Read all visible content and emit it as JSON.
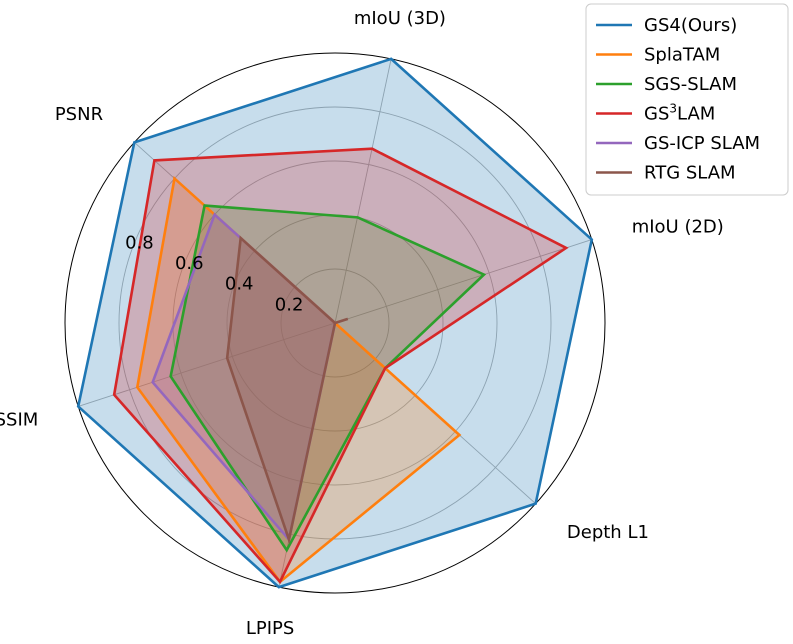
{
  "chart_data": {
    "type": "radar",
    "title": "",
    "rlim": [
      0,
      1.0
    ],
    "grid": true,
    "radial_ticks": [
      0.2,
      0.4,
      0.6,
      0.8
    ],
    "radial_tick_labels": [
      "0.2",
      "0.4",
      "0.6",
      "0.8"
    ],
    "axes": [
      {
        "label": "mIoU (3D)",
        "label_html_sup": ""
      },
      {
        "label": "mIoU (2D)",
        "label_html_sup": ""
      },
      {
        "label": "Depth L1",
        "label_html_sup": ""
      },
      {
        "label": "LPIPS",
        "label_html_sup": ""
      },
      {
        "label": "SSIM",
        "label_html_sup": ""
      },
      {
        "label": "PSNR",
        "label_html_sup": ""
      }
    ],
    "legend_position": "outside top-right",
    "series": [
      {
        "name": "GS4(Ours)",
        "name_base": "GS4(Ours)",
        "name_sup": "",
        "name_tail": "",
        "color": "#1f77b4",
        "fill": true,
        "values": [
          1.0,
          1.0,
          1.0,
          1.0,
          1.0,
          1.0
        ]
      },
      {
        "name": "SplaTAM",
        "name_base": "SplaTAM",
        "name_sup": "",
        "name_tail": "",
        "color": "#ff7f0e",
        "fill": true,
        "values": [
          0.0,
          0.0,
          0.62,
          0.98,
          0.77,
          0.8
        ]
      },
      {
        "name": "SGS-SLAM",
        "name_base": "SGS-SLAM",
        "name_sup": "",
        "name_tail": "",
        "color": "#2ca02c",
        "fill": true,
        "values": [
          0.4,
          0.58,
          0.25,
          0.86,
          0.64,
          0.65
        ]
      },
      {
        "name": "GS3LAM",
        "name_base": "GS",
        "name_sup": "3",
        "name_tail": "LAM",
        "color": "#d62728",
        "fill": true,
        "values": [
          0.66,
          0.9,
          0.25,
          0.98,
          0.86,
          0.9
        ]
      },
      {
        "name": "GS-ICP SLAM",
        "name_base": "GS-ICP SLAM",
        "name_sup": "",
        "name_tail": "",
        "color": "#9467bd",
        "fill": true,
        "values": [
          0.0,
          0.0,
          0.0,
          0.82,
          0.71,
          0.6
        ]
      },
      {
        "name": "RTG SLAM",
        "name_base": "RTG SLAM",
        "name_sup": "",
        "name_tail": "",
        "color": "#8c564b",
        "fill": true,
        "values": [
          0.0,
          0.05,
          0.0,
          0.82,
          0.42,
          0.47
        ]
      }
    ]
  }
}
